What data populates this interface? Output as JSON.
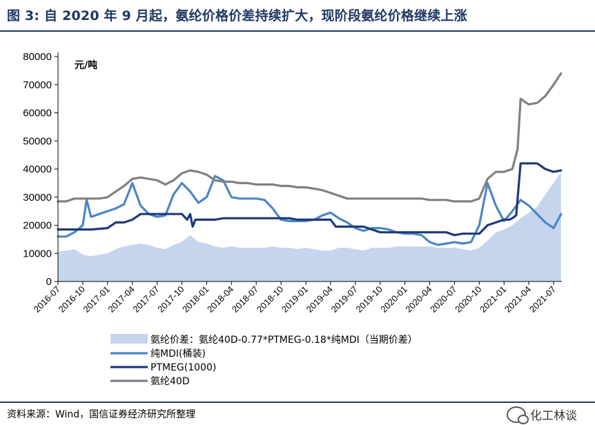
{
  "title": "图 3:  自 2020 年 9 月起，氨纶价格价差持续扩大，现阶段氨纶价格继续上涨",
  "source": "资料来源：Wind，国信证券经济研究所整理",
  "watermark": "化工林谈",
  "chart_data": {
    "type": "line",
    "unit_label": "元/吨",
    "ylim": [
      0,
      80000
    ],
    "yticks": [
      0,
      10000,
      20000,
      30000,
      40000,
      50000,
      60000,
      70000,
      80000
    ],
    "x_range": [
      "2016-07",
      "2021-08"
    ],
    "xticks": [
      "2016-07",
      "2016-10",
      "2017-01",
      "2017-04",
      "2017-07",
      "2017-10",
      "2018-01",
      "2018-04",
      "2018-07",
      "2018-10",
      "2019-01",
      "2019-04",
      "2019-07",
      "2019-10",
      "2020-01",
      "2020-04",
      "2020-07",
      "2020-10",
      "2021-01",
      "2021-04",
      "2021-07"
    ],
    "legend_position": "bottom",
    "series": [
      {
        "name": "氨纶价差：氨纶40D-0.77*PTMEG-0.18*纯MDI（当期价差）",
        "kind": "area",
        "color": "#c5d5ee",
        "x": [
          "2016-07",
          "2016-08",
          "2016-09",
          "2016-10",
          "2016-11",
          "2016-12",
          "2017-01",
          "2017-02",
          "2017-03",
          "2017-04",
          "2017-05",
          "2017-06",
          "2017-07",
          "2017-08",
          "2017-09",
          "2017-10",
          "2017-11",
          "2017-12",
          "2018-01",
          "2018-02",
          "2018-03",
          "2018-04",
          "2018-05",
          "2018-06",
          "2018-07",
          "2018-08",
          "2018-09",
          "2018-10",
          "2018-11",
          "2018-12",
          "2019-01",
          "2019-02",
          "2019-03",
          "2019-04",
          "2019-05",
          "2019-06",
          "2019-07",
          "2019-08",
          "2019-09",
          "2019-10",
          "2019-11",
          "2019-12",
          "2020-01",
          "2020-02",
          "2020-03",
          "2020-04",
          "2020-05",
          "2020-06",
          "2020-07",
          "2020-08",
          "2020-09",
          "2020-10",
          "2020-11",
          "2020-12",
          "2021-01",
          "2021-02",
          "2021-03",
          "2021-04",
          "2021-05",
          "2021-06",
          "2021-07",
          "2021-07-28"
        ],
        "values": [
          10500,
          11000,
          11500,
          9500,
          9000,
          9500,
          10000,
          11500,
          12500,
          13000,
          13500,
          13000,
          12000,
          11500,
          13000,
          14000,
          16500,
          14000,
          13500,
          12500,
          12000,
          12500,
          12000,
          12000,
          12000,
          12000,
          12500,
          12000,
          12000,
          11500,
          12000,
          11500,
          11000,
          11000,
          12000,
          12000,
          11500,
          11000,
          12000,
          12000,
          12000,
          12500,
          12500,
          12500,
          12500,
          12500,
          12000,
          12000,
          12000,
          11500,
          11000,
          12000,
          14500,
          17500,
          18500,
          20000,
          22500,
          24500,
          26500,
          31000,
          35000,
          39000
        ]
      },
      {
        "name": "纯MDI(桶装)",
        "kind": "line",
        "color": "#4a86c8",
        "x": [
          "2016-07",
          "2016-08",
          "2016-09",
          "2016-10",
          "2016-10-15",
          "2016-11",
          "2016-12",
          "2017-01",
          "2017-02",
          "2017-03",
          "2017-04",
          "2017-05",
          "2017-06",
          "2017-07",
          "2017-08",
          "2017-09",
          "2017-10",
          "2017-11",
          "2017-12",
          "2018-01",
          "2018-02",
          "2018-03",
          "2018-04",
          "2018-05",
          "2018-06",
          "2018-07",
          "2018-08",
          "2018-09",
          "2018-10",
          "2018-11",
          "2018-12",
          "2019-01",
          "2019-02",
          "2019-03",
          "2019-04",
          "2019-05",
          "2019-06",
          "2019-07",
          "2019-08",
          "2019-09",
          "2019-10",
          "2019-11",
          "2019-12",
          "2020-01",
          "2020-02",
          "2020-03",
          "2020-04",
          "2020-05",
          "2020-06",
          "2020-07",
          "2020-08",
          "2020-09",
          "2020-10",
          "2020-11",
          "2020-12",
          "2021-01",
          "2021-02",
          "2021-03",
          "2021-04",
          "2021-05",
          "2021-06",
          "2021-07",
          "2021-07-28"
        ],
        "values": [
          16000,
          16000,
          17500,
          20000,
          29000,
          23000,
          24000,
          25000,
          26000,
          27500,
          35000,
          27000,
          24000,
          23000,
          23500,
          31000,
          35000,
          32000,
          28000,
          30000,
          37500,
          36000,
          30000,
          29500,
          29500,
          29500,
          29000,
          26000,
          22000,
          21500,
          21500,
          21500,
          22000,
          23500,
          24500,
          22500,
          21000,
          19000,
          18000,
          19000,
          19000,
          18500,
          17500,
          17000,
          17000,
          16500,
          14000,
          13000,
          13500,
          14000,
          13500,
          14000,
          20000,
          35000,
          27000,
          21500,
          25000,
          29000,
          27000,
          24000,
          21000,
          19000,
          24000
        ]
      },
      {
        "name": "PTMEG(1000)",
        "kind": "line",
        "color": "#1f3a7a",
        "x": [
          "2016-07",
          "2016-09",
          "2016-11",
          "2017-01",
          "2017-02",
          "2017-03",
          "2017-04",
          "2017-05",
          "2017-06",
          "2017-07",
          "2017-08",
          "2017-09",
          "2017-10",
          "2017-10-20",
          "2017-11",
          "2017-11-10",
          "2017-11-20",
          "2017-12",
          "2018-01",
          "2018-02",
          "2018-03",
          "2018-04",
          "2018-05",
          "2018-06",
          "2018-07",
          "2018-08",
          "2018-09",
          "2018-10",
          "2018-11",
          "2018-12",
          "2019-01",
          "2019-02",
          "2019-03",
          "2019-04",
          "2019-04-20",
          "2019-05",
          "2019-06",
          "2019-07",
          "2019-08",
          "2019-09",
          "2019-10",
          "2019-11",
          "2019-12",
          "2020-01",
          "2020-03",
          "2020-04",
          "2020-05",
          "2020-06",
          "2020-07",
          "2020-08",
          "2020-09",
          "2020-10",
          "2020-11",
          "2020-12",
          "2021-01",
          "2021-01-20",
          "2021-02",
          "2021-02-15",
          "2021-03",
          "2021-04",
          "2021-05",
          "2021-06",
          "2021-07",
          "2021-07-28"
        ],
        "values": [
          18500,
          18500,
          18500,
          19000,
          21000,
          21000,
          22000,
          24000,
          24000,
          24000,
          24000,
          24000,
          24000,
          22000,
          24000,
          19500,
          22000,
          22000,
          22000,
          22000,
          22500,
          22500,
          22500,
          22500,
          22500,
          22500,
          22500,
          22500,
          22500,
          22000,
          22000,
          22000,
          22000,
          22000,
          19500,
          19500,
          19500,
          19500,
          19500,
          18500,
          17500,
          17500,
          17500,
          17500,
          17500,
          17500,
          17500,
          17500,
          16500,
          17000,
          17000,
          17000,
          20000,
          21000,
          22000,
          22000,
          22500,
          23500,
          42000,
          42000,
          42000,
          40000,
          39000,
          39500
        ]
      },
      {
        "name": "氨纶40D",
        "kind": "line",
        "color": "#808080",
        "x": [
          "2016-07",
          "2016-08",
          "2016-09",
          "2016-10",
          "2016-11",
          "2016-12",
          "2017-01",
          "2017-02",
          "2017-03",
          "2017-04",
          "2017-05",
          "2017-06",
          "2017-07",
          "2017-08",
          "2017-09",
          "2017-10",
          "2017-11",
          "2017-12",
          "2018-01",
          "2018-02",
          "2018-03",
          "2018-04",
          "2018-05",
          "2018-06",
          "2018-07",
          "2018-08",
          "2018-09",
          "2018-10",
          "2018-11",
          "2018-12",
          "2019-01",
          "2019-02",
          "2019-03",
          "2019-04",
          "2019-05",
          "2019-06",
          "2019-07",
          "2019-08",
          "2019-09",
          "2019-10",
          "2019-11",
          "2019-12",
          "2020-01",
          "2020-02",
          "2020-03",
          "2020-04",
          "2020-05",
          "2020-06",
          "2020-07",
          "2020-08",
          "2020-09",
          "2020-10",
          "2020-11",
          "2020-12",
          "2021-01",
          "2021-02",
          "2021-02-20",
          "2021-03",
          "2021-03-15",
          "2021-04",
          "2021-05",
          "2021-06",
          "2021-07",
          "2021-07-28"
        ],
        "values": [
          28500,
          28500,
          29500,
          29500,
          29500,
          29500,
          30000,
          32000,
          34000,
          36500,
          37000,
          36500,
          36000,
          34500,
          36000,
          38500,
          39500,
          39000,
          38000,
          36000,
          35500,
          35500,
          35000,
          35000,
          34500,
          34500,
          34500,
          34000,
          34000,
          33500,
          33500,
          33000,
          32500,
          31500,
          30500,
          29500,
          29500,
          29500,
          29500,
          29500,
          29500,
          29500,
          29500,
          29500,
          29500,
          29000,
          29000,
          29000,
          28500,
          28500,
          28500,
          29500,
          36500,
          39000,
          39000,
          40000,
          47000,
          65000,
          64000,
          63000,
          63500,
          66000,
          70000,
          74000
        ]
      }
    ]
  }
}
